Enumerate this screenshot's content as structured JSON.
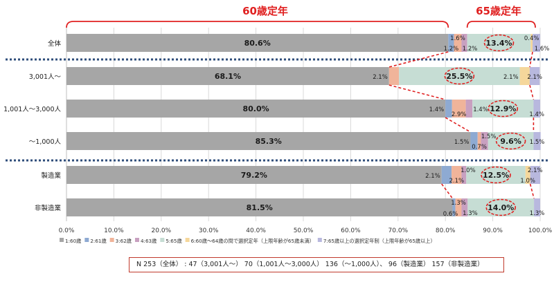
{
  "chart_data": {
    "type": "bar",
    "orientation": "horizontal",
    "stacked": true,
    "header_labels": {
      "left": "60歳定年",
      "right": "65歳定年"
    },
    "categories": [
      "全体",
      "3,001人～",
      "1,001人～3,000人",
      "～1,000人",
      "製造業",
      "非製造業"
    ],
    "series": [
      {
        "name": "1:60歳",
        "values": [
          80.6,
          68.1,
          80.0,
          85.3,
          79.2,
          81.5
        ]
      },
      {
        "name": "2:61歳",
        "values": [
          1.2,
          0,
          1.4,
          1.5,
          2.1,
          0.6
        ]
      },
      {
        "name": "3:62歳",
        "values": [
          1.6,
          2.1,
          2.9,
          0.7,
          2.1,
          1.3
        ]
      },
      {
        "name": "4:63歳",
        "values": [
          1.2,
          0,
          1.4,
          1.5,
          1.0,
          1.3
        ]
      },
      {
        "name": "5:65歳",
        "values": [
          13.4,
          25.5,
          12.9,
          9.6,
          12.5,
          14.0
        ]
      },
      {
        "name": "6:60歳～64歳の間で選択定年（上限年齢が65歳未満）",
        "values": [
          0.4,
          2.1,
          0,
          0,
          1.0,
          0
        ]
      },
      {
        "name": "7:65歳以上の選択定年制（上限年齢が65歳以上）",
        "values": [
          1.6,
          2.1,
          1.4,
          1.5,
          2.1,
          1.3
        ]
      }
    ],
    "data_labels": [
      [
        {
          "s": 0,
          "text": "80.6%",
          "pos": "in",
          "bold": true
        },
        {
          "s": 1,
          "text": "1.2%",
          "pos": "below"
        },
        {
          "s": 2,
          "text": "1.6%",
          "pos": "above"
        },
        {
          "s": 3,
          "text": "1.2%",
          "pos": "below-right"
        },
        {
          "s": 4,
          "text": "13.4%",
          "pos": "in",
          "bold": true,
          "circle": true
        },
        {
          "s": 5,
          "text": "0.4%",
          "pos": "above"
        },
        {
          "s": 6,
          "text": "1.6%",
          "pos": "below-right"
        }
      ],
      [
        {
          "s": 0,
          "text": "68.1%",
          "pos": "in",
          "bold": true
        },
        {
          "s": 2,
          "text": "2.1%",
          "pos": "left"
        },
        {
          "s": 4,
          "text": "25.5%",
          "pos": "in",
          "bold": true,
          "circle": true
        },
        {
          "s": 5,
          "text": "2.1%",
          "pos": "left"
        },
        {
          "s": 6,
          "text": "2.1%",
          "pos": "in"
        }
      ],
      [
        {
          "s": 0,
          "text": "80.0%",
          "pos": "in",
          "bold": true
        },
        {
          "s": 1,
          "text": "1.4%",
          "pos": "left"
        },
        {
          "s": 2,
          "text": "2.9%",
          "pos": "below"
        },
        {
          "s": 3,
          "text": "1.4%",
          "pos": "right"
        },
        {
          "s": 4,
          "text": "12.9%",
          "pos": "in",
          "bold": true,
          "circle": true
        },
        {
          "s": 6,
          "text": "1.4%",
          "pos": "below"
        }
      ],
      [
        {
          "s": 0,
          "text": "85.3%",
          "pos": "in",
          "bold": true
        },
        {
          "s": 1,
          "text": "1.5%",
          "pos": "left"
        },
        {
          "s": 2,
          "text": "0.7%",
          "pos": "below"
        },
        {
          "s": 3,
          "text": "1.5%",
          "pos": "above-right"
        },
        {
          "s": 4,
          "text": "9.6%",
          "pos": "in",
          "bold": true,
          "circle": true
        },
        {
          "s": 6,
          "text": "1.5%",
          "pos": "in"
        }
      ],
      [
        {
          "s": 0,
          "text": "79.2%",
          "pos": "in",
          "bold": true
        },
        {
          "s": 1,
          "text": "2.1%",
          "pos": "left"
        },
        {
          "s": 2,
          "text": "2.1%",
          "pos": "below"
        },
        {
          "s": 3,
          "text": "1.0%",
          "pos": "above-right"
        },
        {
          "s": 4,
          "text": "12.5%",
          "pos": "in",
          "bold": true,
          "circle": true
        },
        {
          "s": 5,
          "text": "1.0%",
          "pos": "below"
        },
        {
          "s": 6,
          "text": "2.1%",
          "pos": "above"
        }
      ],
      [
        {
          "s": 0,
          "text": "81.5%",
          "pos": "in",
          "bold": true
        },
        {
          "s": 1,
          "text": "0.6%",
          "pos": "below-left"
        },
        {
          "s": 2,
          "text": "1.3%",
          "pos": "above"
        },
        {
          "s": 3,
          "text": "1.3%",
          "pos": "below-right"
        },
        {
          "s": 4,
          "text": "14.0%",
          "pos": "in",
          "bold": true,
          "circle": true
        },
        {
          "s": 6,
          "text": "1.3%",
          "pos": "below"
        }
      ]
    ],
    "xlim": [
      0,
      100
    ],
    "xticks": [
      "0.0%",
      "10.0%",
      "20.0%",
      "30.0%",
      "40.0%",
      "50.0%",
      "60.0%",
      "70.0%",
      "80.0%",
      "90.0%",
      "100.0%"
    ],
    "grid": true,
    "legend_position": "bottom",
    "colors": [
      "#a6a6a6",
      "#8eaad2",
      "#f0b49a",
      "#c8a0c0",
      "#c6ddd4",
      "#f5d79b",
      "#b8b8de"
    ],
    "accent_color": "#e02020",
    "divider_color": "#2e4d7a"
  },
  "note": "N 253（全体）  :  47（3,001人～）  70（1,001人～3,000人）  136（～1,000人）、 96（製造業）  157（非製造業）"
}
